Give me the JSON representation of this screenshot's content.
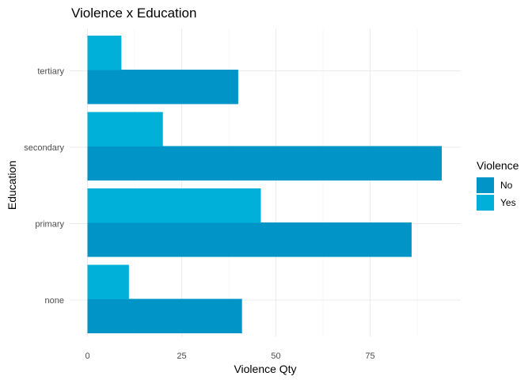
{
  "chart_data": {
    "type": "bar",
    "orientation": "horizontal",
    "title": "Violence x Education",
    "xlabel": "Violence Qty",
    "ylabel": "Education",
    "categories": [
      "none",
      "primary",
      "secondary",
      "tertiary"
    ],
    "series": [
      {
        "name": "No",
        "values": [
          41,
          86,
          94,
          40
        ],
        "color": "#0095c6"
      },
      {
        "name": "Yes",
        "values": [
          11,
          46,
          20,
          9
        ],
        "color": "#00b0d8"
      }
    ],
    "xlim": [
      0,
      99
    ],
    "xticks": [
      0,
      25,
      50,
      75
    ],
    "legend": {
      "title": "Violence",
      "position": "right"
    },
    "grid": true
  }
}
